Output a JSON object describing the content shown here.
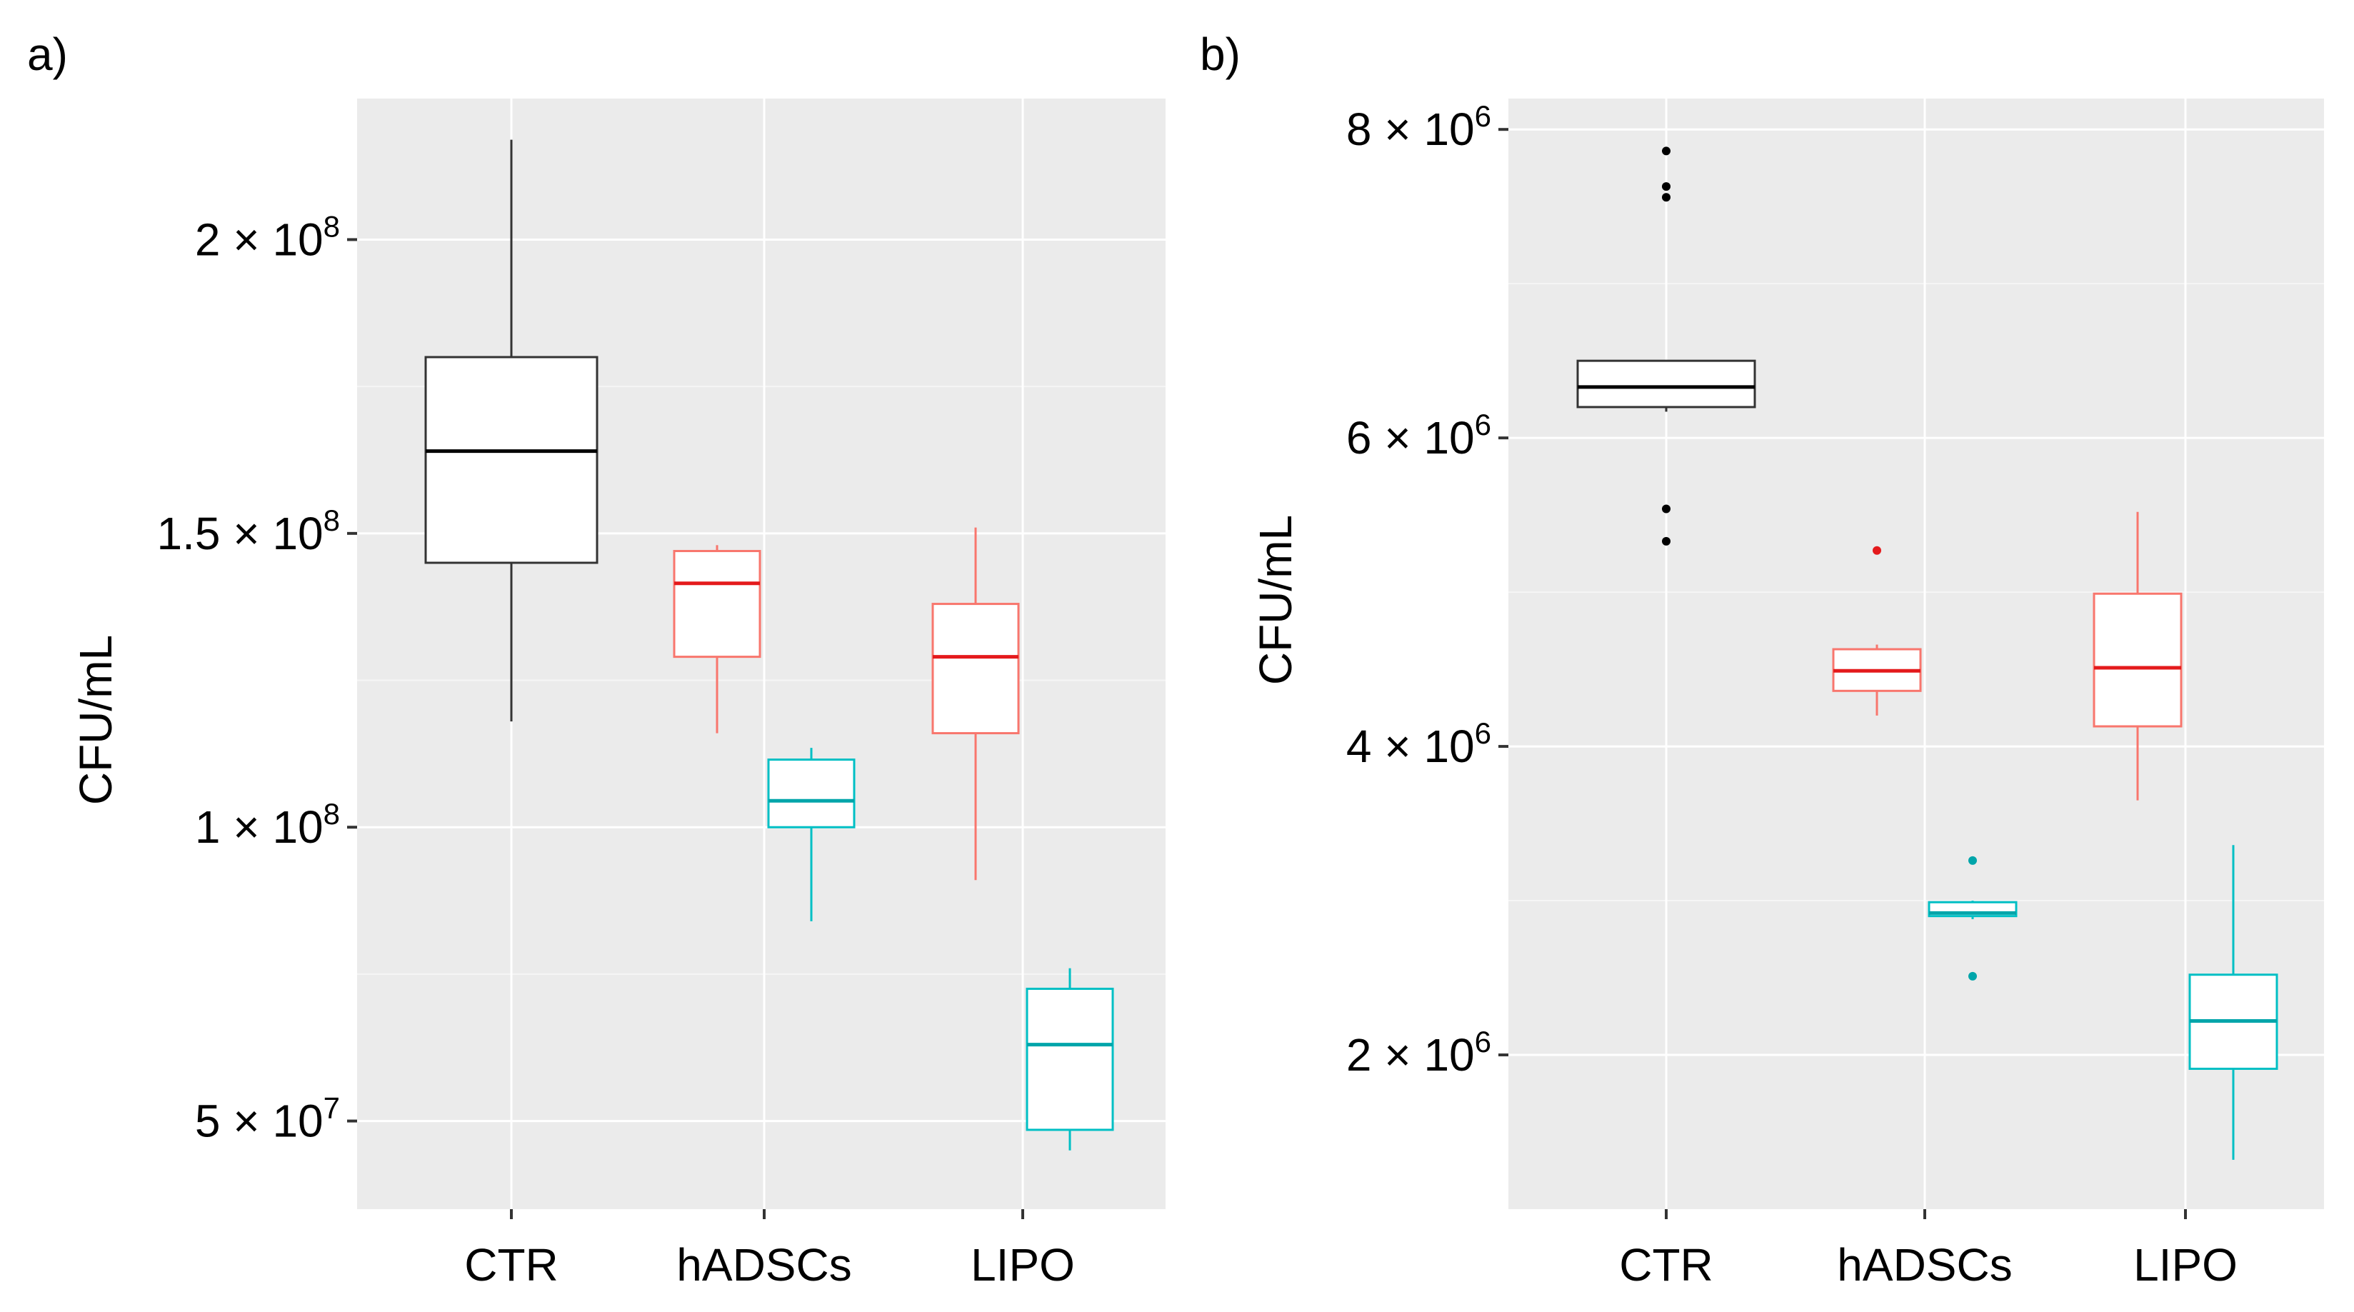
{
  "chart_data": [
    {
      "type": "boxplot",
      "panel_label": "a)",
      "xlabel": "",
      "ylabel": "CFU/mL",
      "ylim": [
        35000000,
        224000000
      ],
      "categories": [
        "CTR",
        "hADSCs",
        "LIPO"
      ],
      "yticks": [
        {
          "value": 200000000,
          "mantissa": "2",
          "exp": "8"
        },
        {
          "value": 150000000,
          "mantissa": "1.5",
          "exp": "8"
        },
        {
          "value": 100000000,
          "mantissa": "1",
          "exp": "8"
        },
        {
          "value": 50000000,
          "mantissa": "5",
          "exp": "7"
        }
      ],
      "minor_gridlines": [
        175000000,
        125000000,
        75000000
      ],
      "times_sign": "×",
      "tick_base": "10",
      "series": [
        {
          "name": "CTR",
          "category": "CTR",
          "color": "#333333",
          "median_color": "#000000",
          "whisker_low": 118000000,
          "q1": 145000000,
          "median": 164000000,
          "q3": 180000000,
          "whisker_high": 217000000,
          "outliers": []
        },
        {
          "name": "hADSCs-red",
          "category": "hADSCs",
          "side": "left",
          "color": "#F8766D",
          "median_color": "#E41A1C",
          "whisker_low": 116000000,
          "q1": 129000000,
          "median": 141500000,
          "q3": 147000000,
          "whisker_high": 148000000,
          "outliers": []
        },
        {
          "name": "hADSCs-teal",
          "category": "hADSCs",
          "side": "right",
          "color": "#00BFC4",
          "median_color": "#00A5AA",
          "whisker_low": 84000000,
          "q1": 100000000,
          "median": 104500000,
          "q3": 111500000,
          "whisker_high": 113500000,
          "outliers": []
        },
        {
          "name": "LIPO-red",
          "category": "LIPO",
          "side": "left",
          "color": "#F8766D",
          "median_color": "#E41A1C",
          "whisker_low": 91000000,
          "q1": 116000000,
          "median": 129000000,
          "q3": 138000000,
          "whisker_high": 151000000,
          "outliers": []
        },
        {
          "name": "LIPO-teal",
          "category": "LIPO",
          "side": "right",
          "color": "#00BFC4",
          "median_color": "#00A5AA",
          "whisker_low": 45000000,
          "q1": 48500000,
          "median": 63000000,
          "q3": 72500000,
          "whisker_high": 76000000,
          "outliers": []
        }
      ]
    },
    {
      "type": "boxplot",
      "panel_label": "b)",
      "xlabel": "",
      "ylabel": "CFU/mL",
      "ylim": [
        1000000,
        8200000
      ],
      "categories": [
        "CTR",
        "hADSCs",
        "LIPO"
      ],
      "yticks": [
        {
          "value": 8000000,
          "mantissa": "8",
          "exp": "6"
        },
        {
          "value": 6000000,
          "mantissa": "6",
          "exp": "6"
        },
        {
          "value": 4000000,
          "mantissa": "4",
          "exp": "6"
        },
        {
          "value": 2000000,
          "mantissa": "2",
          "exp": "6"
        }
      ],
      "minor_gridlines": [
        7000000,
        5000000,
        3000000
      ],
      "times_sign": "×",
      "tick_base": "10",
      "series": [
        {
          "name": "CTR",
          "category": "CTR",
          "color": "#333333",
          "median_color": "#000000",
          "whisker_low": 6170000,
          "q1": 6200000,
          "median": 6330000,
          "q3": 6500000,
          "whisker_high": 6500000,
          "outliers": [
            7860000,
            7630000,
            7560000,
            5540000,
            5330000
          ]
        },
        {
          "name": "hADSCs-red",
          "category": "hADSCs",
          "side": "left",
          "color": "#F8766D",
          "median_color": "#E41A1C",
          "whisker_low": 4200000,
          "q1": 4360000,
          "median": 4490000,
          "q3": 4630000,
          "whisker_high": 4660000,
          "outliers": [
            5270000
          ]
        },
        {
          "name": "hADSCs-teal",
          "category": "hADSCs",
          "side": "right",
          "color": "#00BFC4",
          "median_color": "#00A5AA",
          "whisker_low": 2880000,
          "q1": 2900000,
          "median": 2920000,
          "q3": 2990000,
          "whisker_high": 3000000,
          "outliers": [
            3260000,
            2510000
          ]
        },
        {
          "name": "LIPO-red",
          "category": "LIPO",
          "side": "left",
          "color": "#F8766D",
          "median_color": "#E41A1C",
          "whisker_low": 3650000,
          "q1": 4130000,
          "median": 4510000,
          "q3": 4990000,
          "whisker_high": 5520000,
          "outliers": []
        },
        {
          "name": "LIPO-teal",
          "category": "LIPO",
          "side": "right",
          "color": "#00BFC4",
          "median_color": "#00A5AA",
          "whisker_low": 1320000,
          "q1": 1910000,
          "median": 2220000,
          "q3": 2520000,
          "whisker_high": 3360000,
          "outliers": []
        }
      ]
    }
  ]
}
